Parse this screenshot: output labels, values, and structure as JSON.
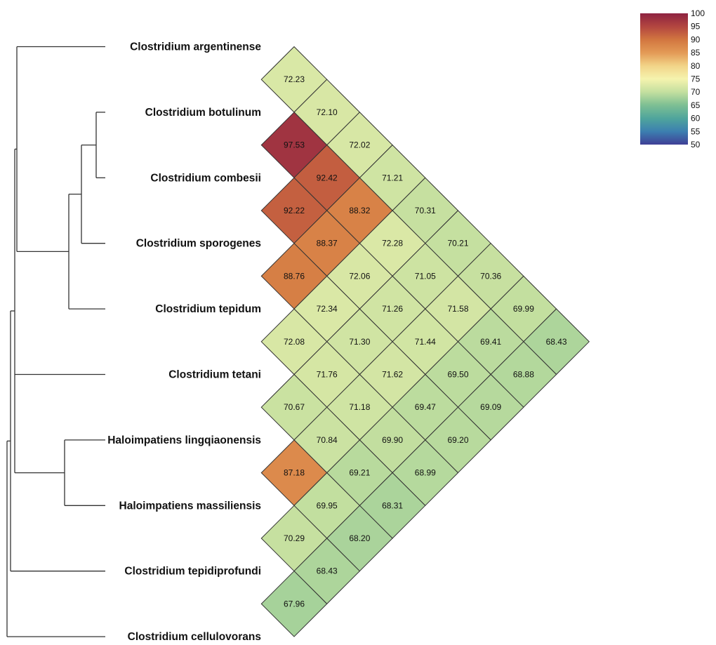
{
  "chart_data": {
    "type": "heatmap",
    "taxa": [
      "Clostridium argentinense",
      "Clostridium botulinum",
      "Clostridium combesii",
      "Clostridium sporogenes",
      "Clostridium tepidum",
      "Clostridium tetani",
      "Haloimpatiens lingqiaonensis",
      "Haloimpatiens massiliensis",
      "Clostridium tepidiprofundi",
      "Clostridium cellulovorans"
    ],
    "pairwise_values": [
      {
        "a": 0,
        "b": 1,
        "value": "72.23"
      },
      {
        "a": 0,
        "b": 2,
        "value": "72.10"
      },
      {
        "a": 0,
        "b": 3,
        "value": "72.02"
      },
      {
        "a": 0,
        "b": 4,
        "value": "71.21"
      },
      {
        "a": 0,
        "b": 5,
        "value": "70.31"
      },
      {
        "a": 0,
        "b": 6,
        "value": "70.21"
      },
      {
        "a": 0,
        "b": 7,
        "value": "70.36"
      },
      {
        "a": 0,
        "b": 8,
        "value": "69.99"
      },
      {
        "a": 0,
        "b": 9,
        "value": "68.43"
      },
      {
        "a": 1,
        "b": 2,
        "value": "97.53"
      },
      {
        "a": 1,
        "b": 3,
        "value": "92.42"
      },
      {
        "a": 1,
        "b": 4,
        "value": "88.32"
      },
      {
        "a": 1,
        "b": 5,
        "value": "72.28"
      },
      {
        "a": 1,
        "b": 6,
        "value": "71.05"
      },
      {
        "a": 1,
        "b": 7,
        "value": "71.58"
      },
      {
        "a": 1,
        "b": 8,
        "value": "69.41"
      },
      {
        "a": 1,
        "b": 9,
        "value": "68.88"
      },
      {
        "a": 2,
        "b": 3,
        "value": "92.22"
      },
      {
        "a": 2,
        "b": 4,
        "value": "88.37"
      },
      {
        "a": 2,
        "b": 5,
        "value": "72.06"
      },
      {
        "a": 2,
        "b": 6,
        "value": "71.26"
      },
      {
        "a": 2,
        "b": 7,
        "value": "71.44"
      },
      {
        "a": 2,
        "b": 8,
        "value": "69.50"
      },
      {
        "a": 2,
        "b": 9,
        "value": "69.09"
      },
      {
        "a": 3,
        "b": 4,
        "value": "88.76"
      },
      {
        "a": 3,
        "b": 5,
        "value": "72.34"
      },
      {
        "a": 3,
        "b": 6,
        "value": "71.30"
      },
      {
        "a": 3,
        "b": 7,
        "value": "71.62"
      },
      {
        "a": 3,
        "b": 8,
        "value": "69.47"
      },
      {
        "a": 3,
        "b": 9,
        "value": "69.20"
      },
      {
        "a": 4,
        "b": 5,
        "value": "72.08"
      },
      {
        "a": 4,
        "b": 6,
        "value": "71.76"
      },
      {
        "a": 4,
        "b": 7,
        "value": "71.18"
      },
      {
        "a": 4,
        "b": 8,
        "value": "69.90"
      },
      {
        "a": 4,
        "b": 9,
        "value": "68.99"
      },
      {
        "a": 5,
        "b": 6,
        "value": "70.67"
      },
      {
        "a": 5,
        "b": 7,
        "value": "70.84"
      },
      {
        "a": 5,
        "b": 8,
        "value": "69.21"
      },
      {
        "a": 5,
        "b": 9,
        "value": "68.31"
      },
      {
        "a": 6,
        "b": 7,
        "value": "87.18"
      },
      {
        "a": 6,
        "b": 8,
        "value": "69.95"
      },
      {
        "a": 6,
        "b": 9,
        "value": "68.20"
      },
      {
        "a": 7,
        "b": 8,
        "value": "70.29"
      },
      {
        "a": 7,
        "b": 9,
        "value": "68.43"
      },
      {
        "a": 8,
        "b": 9,
        "value": "67.96"
      }
    ],
    "colorbar": {
      "min": 50,
      "max": 100,
      "ticks": [
        "100",
        "95",
        "90",
        "85",
        "80",
        "75",
        "70",
        "65",
        "60",
        "55",
        "50"
      ],
      "stops": [
        {
          "value": 50,
          "color": "#3f3f96"
        },
        {
          "value": 55,
          "color": "#3c7fb0"
        },
        {
          "value": 60,
          "color": "#4fa59c"
        },
        {
          "value": 65,
          "color": "#7dbf93"
        },
        {
          "value": 70,
          "color": "#c3df9f"
        },
        {
          "value": 75,
          "color": "#f5f3ae"
        },
        {
          "value": 80,
          "color": "#f2d488"
        },
        {
          "value": 85,
          "color": "#e39a56"
        },
        {
          "value": 90,
          "color": "#d27640"
        },
        {
          "value": 95,
          "color": "#b24540"
        },
        {
          "value": 100,
          "color": "#8e2341"
        }
      ]
    },
    "dendrogram": "((Clostridium argentinense,((Clostridium botulinum,Clostridium combesii),Clostridium sporogenes),Clostridium tepidum),Clostridium tetani,(Haloimpatiens lingqiaonensis,Haloimpatiens massiliensis),Clostridium tepidiprofundi),Clostridium cellulovorans"
  }
}
